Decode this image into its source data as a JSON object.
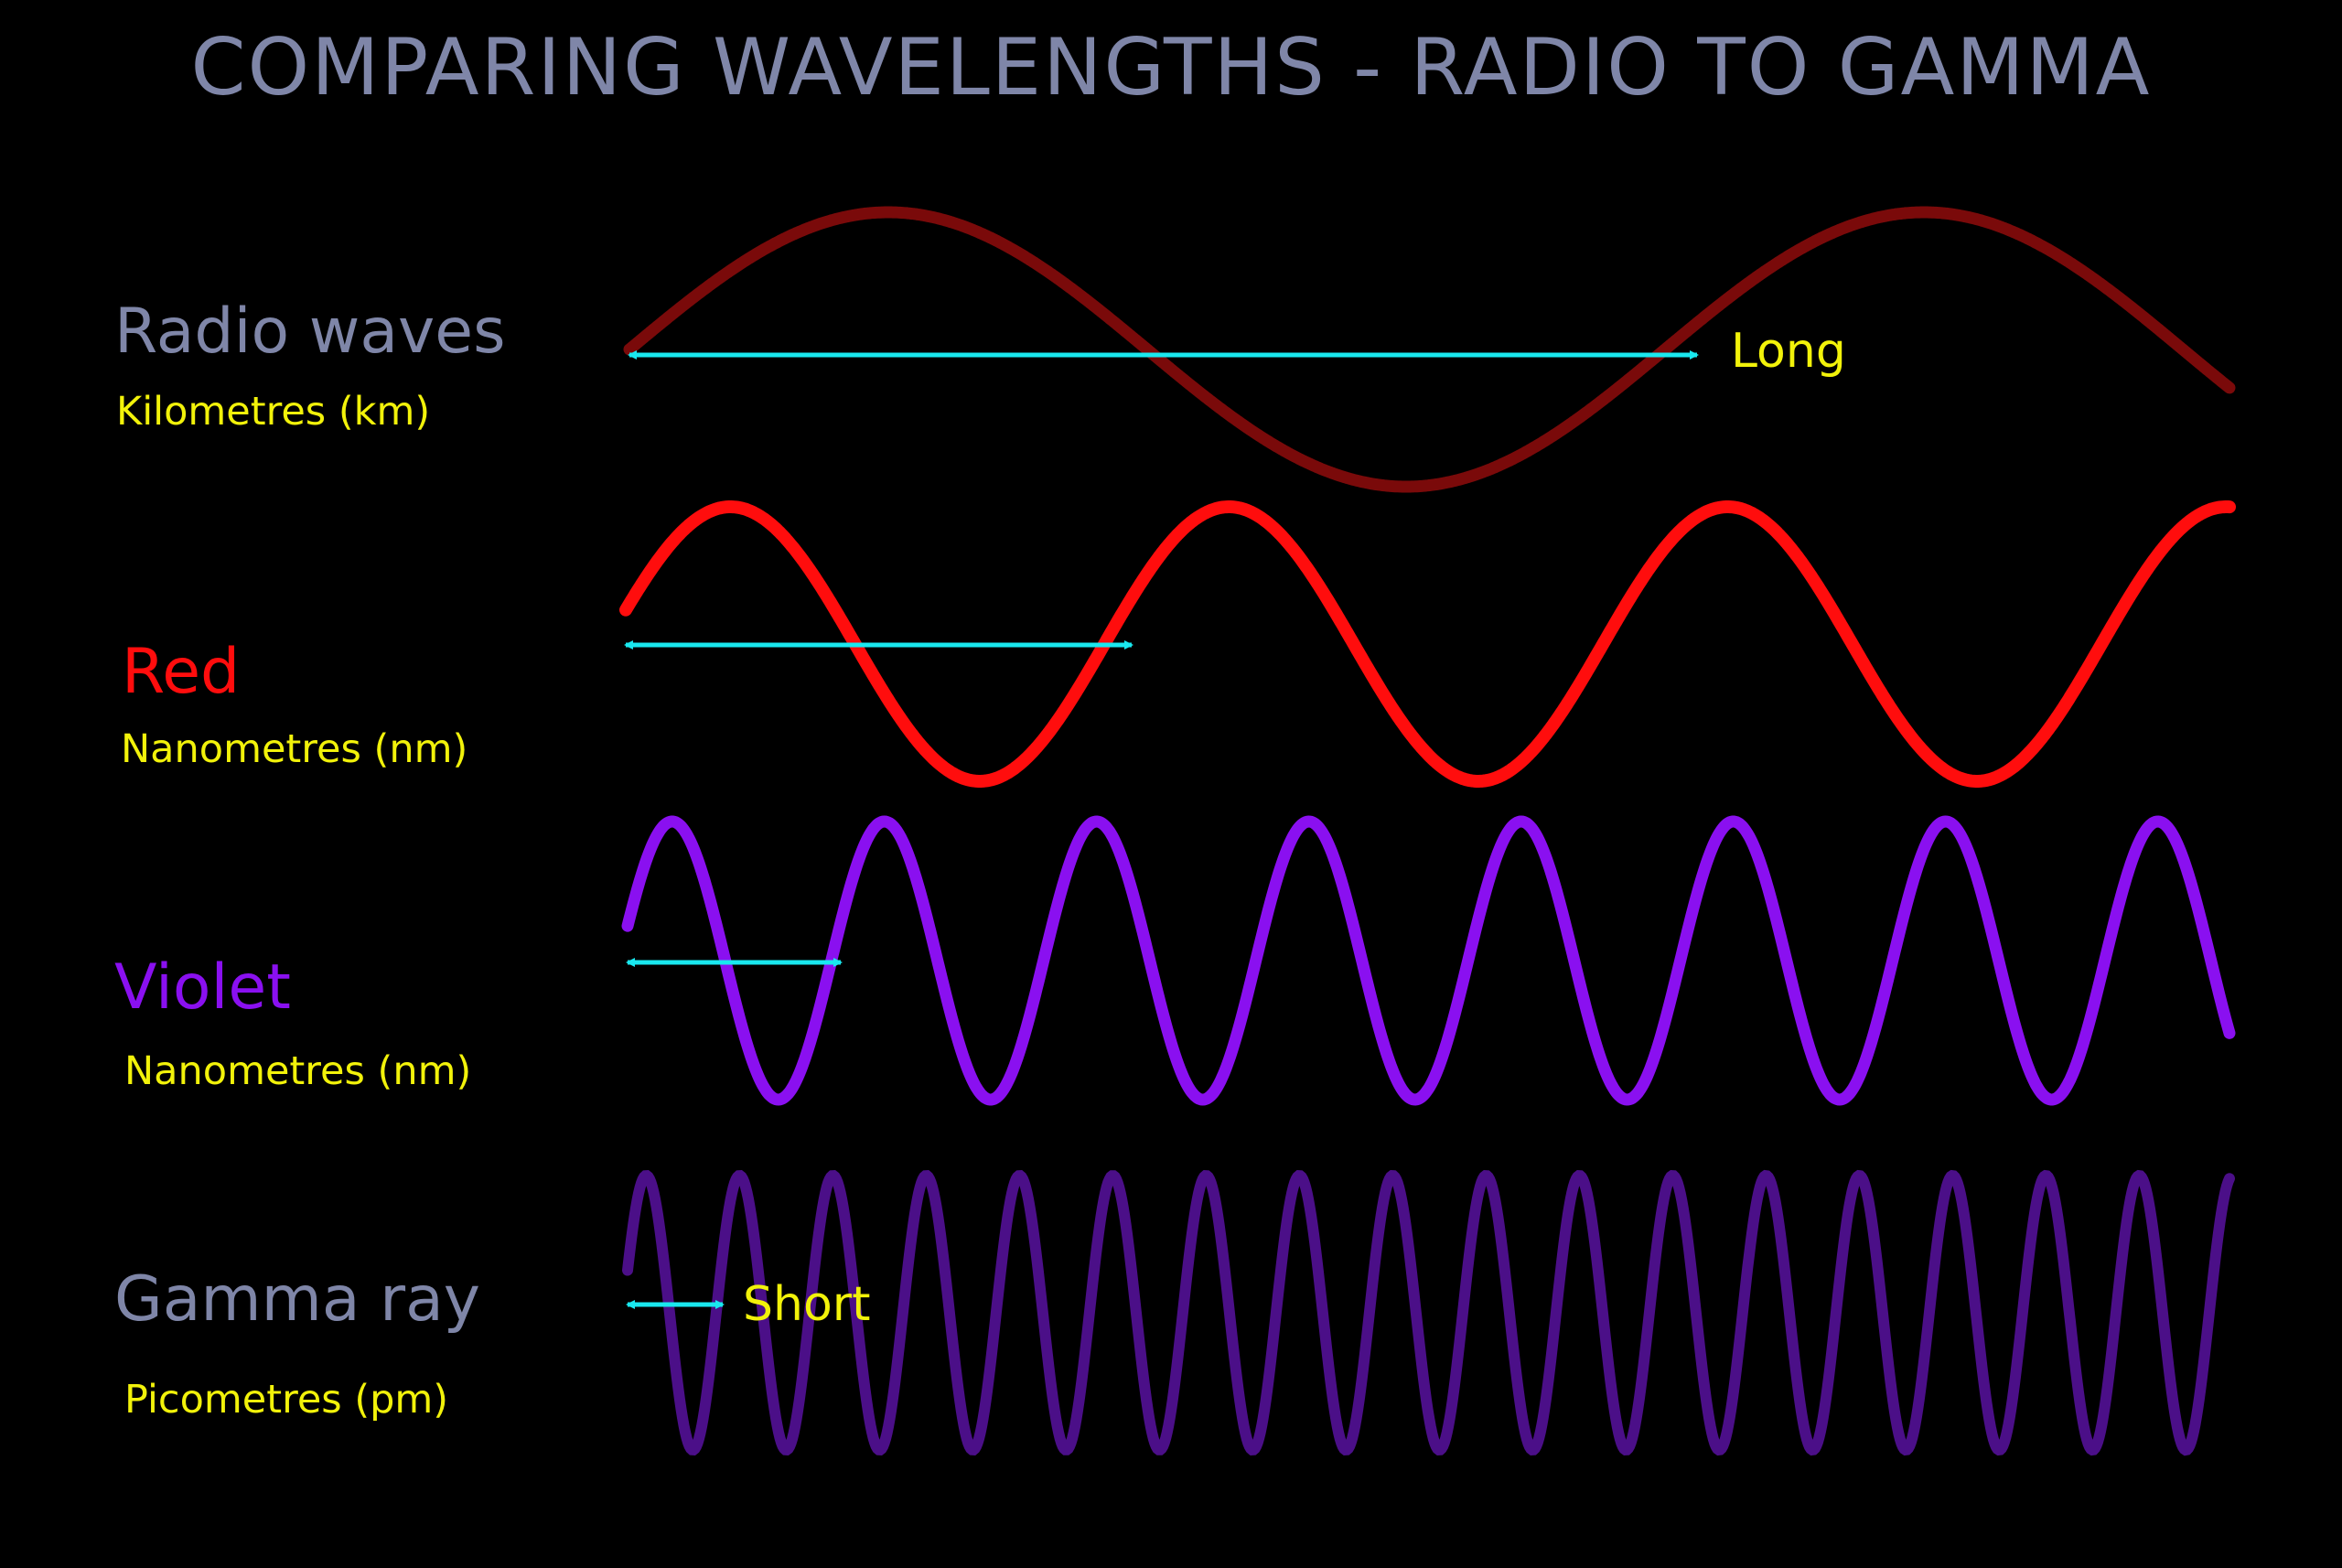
{
  "title": "COMPARING WAVELENGTHS - RADIO TO GAMMA",
  "colors": {
    "background": "#000000",
    "title": "#7f86a8",
    "unit_text": "#f2f20a",
    "arrow": "#19e8ef"
  },
  "waves": [
    {
      "name": "Radio waves",
      "unit": "Kilometres (km)",
      "name_color": "#7f86a8",
      "wave_color": "#7a0a0a",
      "arrow_label": "Long"
    },
    {
      "name": "Red",
      "unit": "Nanometres (nm)",
      "name_color": "#ff0d0d",
      "wave_color": "#ff0d0d",
      "arrow_label": ""
    },
    {
      "name": "Violet",
      "unit": "Nanometres (nm)",
      "name_color": "#8a10f0",
      "wave_color": "#8a10f0",
      "arrow_label": ""
    },
    {
      "name": "Gamma ray",
      "unit": "Picometres (pm)",
      "name_color": "#7f86a8",
      "wave_color": "#4b0f88",
      "arrow_label": "Short"
    }
  ]
}
